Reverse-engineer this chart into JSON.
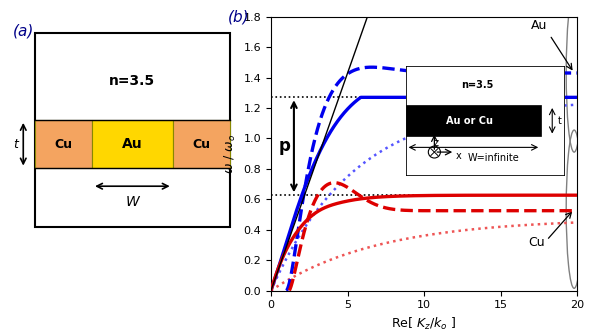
{
  "fig_width": 5.89,
  "fig_height": 3.34,
  "dpi": 100,
  "left_panel": {
    "n_label": "n=3.5",
    "cu_color": "#F4A460",
    "au_color": "#FFD700",
    "metal_label_cu": "Cu",
    "metal_label_au": "Au",
    "t_label": "t",
    "w_label": "W",
    "panel_label": "(a)"
  },
  "right_panel": {
    "panel_label": "(b)",
    "xlim": [
      0,
      20
    ],
    "ylim": [
      0,
      1.8
    ],
    "yticks": [
      0,
      0.2,
      0.4,
      0.6,
      0.8,
      1.0,
      1.2,
      1.4,
      1.6,
      1.8
    ],
    "xticks": [
      0,
      5,
      10,
      15,
      20
    ],
    "blue_asymptote": 1.27,
    "red_asymptote": 0.627,
    "au_label": "Au",
    "cu_label": "Cu",
    "p_label": "p",
    "inset": {
      "n_label": "n=3.5",
      "metal_label": "Au or Cu",
      "t_label": "t",
      "w_label": "W=infinite",
      "metal_bg": "#000000",
      "dielectric_bg": "#ffffff"
    }
  },
  "blue_solid_color": "#0000EE",
  "blue_dashed_color": "#0000EE",
  "blue_dotted_color": "#5555FF",
  "red_solid_color": "#DD0000",
  "red_dashed_color": "#DD0000",
  "red_dotted_color": "#EE5555",
  "lw_thick": 2.4,
  "lw_thin": 1.8
}
